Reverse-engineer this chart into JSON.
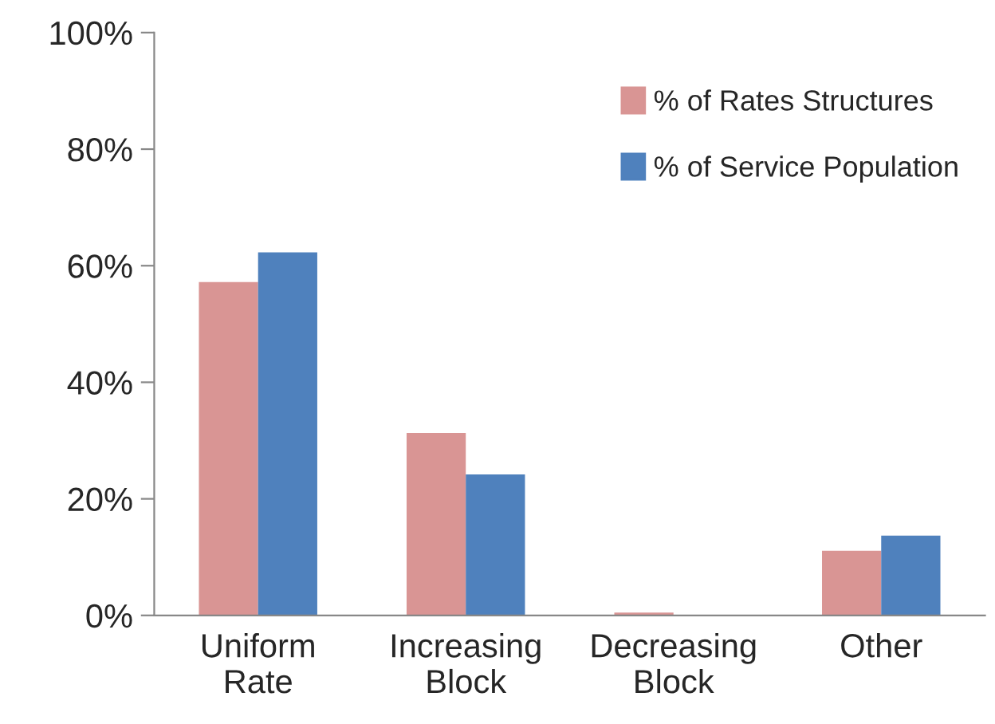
{
  "chart_data": {
    "type": "bar",
    "categories": [
      "Uniform\nRate",
      "Increasing\nBlock",
      "Decreasing\nBlock",
      "Other"
    ],
    "series": [
      {
        "name": "% of Rates Structures",
        "color": "#d99594",
        "values": [
          57.2,
          31.3,
          0.5,
          11.1
        ]
      },
      {
        "name": "% of Service Population",
        "color": "#4f81bd",
        "values": [
          62.3,
          24.2,
          0.1,
          13.7
        ]
      }
    ],
    "ylim": [
      0,
      100
    ],
    "yticks": [
      {
        "value": 0,
        "label": "0%"
      },
      {
        "value": 20,
        "label": "20%"
      },
      {
        "value": 40,
        "label": "40%"
      },
      {
        "value": 60,
        "label": "60%"
      },
      {
        "value": 80,
        "label": "80%"
      },
      {
        "value": 100,
        "label": "100%"
      }
    ],
    "grid": false,
    "legend": "top right"
  }
}
